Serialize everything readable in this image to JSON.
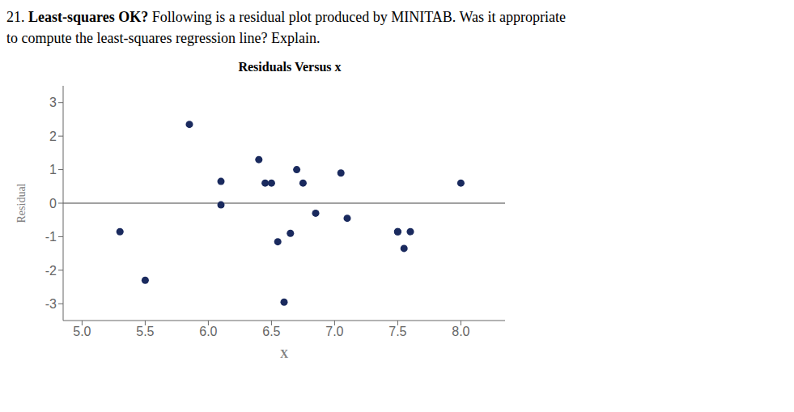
{
  "chart_data": {
    "type": "scatter",
    "title": "Residuals Versus x",
    "xlabel": "X",
    "ylabel": "Residual",
    "annotations": [
      "21.",
      "Least-squares OK?",
      "Following is a residual plot produced by MINITAB. Was it appropriate",
      "to compute the least-squares regression line? Explain."
    ],
    "x": [
      5.3,
      5.5,
      5.85,
      6.1,
      6.1,
      6.4,
      6.45,
      6.5,
      6.55,
      6.6,
      6.65,
      6.7,
      6.75,
      6.85,
      7.05,
      7.1,
      7.5,
      7.5,
      7.55,
      7.6,
      8.0
    ],
    "values": [
      -0.85,
      -2.3,
      2.35,
      -0.05,
      0.65,
      1.3,
      0.6,
      0.6,
      -1.15,
      -2.95,
      -0.9,
      1.0,
      0.6,
      -0.3,
      0.9,
      -0.45,
      -0.85,
      -0.85,
      -1.35,
      -0.85,
      0.6
    ],
    "color": "#1a2a5e",
    "xlim": [
      4.85,
      8.35
    ],
    "ylim": [
      -3.5,
      3.5
    ],
    "xticks": [
      {
        "value": 5.0,
        "label": "5.0"
      },
      5.5,
      {
        "value": 6.0,
        "label": "6.0"
      },
      6.5,
      {
        "value": 7.0,
        "label": "7.0"
      },
      7.5,
      {
        "value": 8.0,
        "label": "8.0"
      }
    ],
    "yticks": [
      -3,
      -2,
      -1,
      0,
      1,
      2,
      3
    ],
    "grid": false,
    "hline": 0
  }
}
